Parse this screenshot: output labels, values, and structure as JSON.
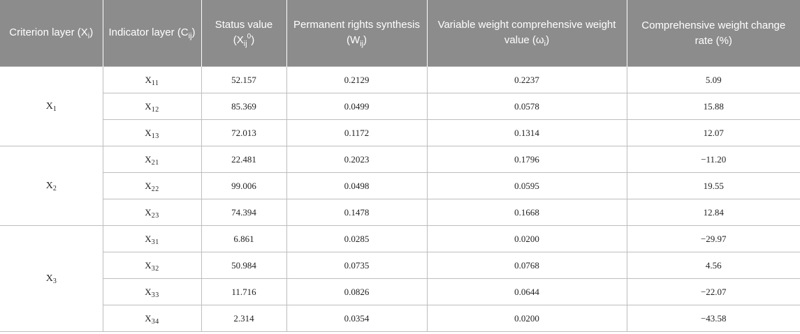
{
  "headers": [
    {
      "pre": "Criterion layer (X",
      "sub": "i",
      "post": ")"
    },
    {
      "pre": "Indicator layer (C",
      "sub": "ij",
      "post": ")"
    },
    {
      "pre": "Status value (X",
      "sub": "ij",
      "sup": "0",
      "post": ")"
    },
    {
      "pre": "Permanent rights synthesis (W",
      "sub": "ij",
      "post": ")"
    },
    {
      "pre": "Variable weight comprehensive weight value (ω",
      "sub": "i",
      "post": ")"
    },
    {
      "pre": "Comprehensive weight change rate (%)"
    }
  ],
  "groups": [
    {
      "name": "X",
      "sub": "1",
      "rows": [
        {
          "ind": "X",
          "ind_sub": "11",
          "status": "52.157",
          "perm": "0.2129",
          "var": "0.2237",
          "rate": "5.09"
        },
        {
          "ind": "X",
          "ind_sub": "12",
          "status": "85.369",
          "perm": "0.0499",
          "var": "0.0578",
          "rate": "15.88"
        },
        {
          "ind": "X",
          "ind_sub": "13",
          "status": "72.013",
          "perm": "0.1172",
          "var": "0.1314",
          "rate": "12.07"
        }
      ]
    },
    {
      "name": "X",
      "sub": "2",
      "rows": [
        {
          "ind": "X",
          "ind_sub": "21",
          "status": "22.481",
          "perm": "0.2023",
          "var": "0.1796",
          "rate": "−11.20"
        },
        {
          "ind": "X",
          "ind_sub": "22",
          "status": "99.006",
          "perm": "0.0498",
          "var": "0.0595",
          "rate": "19.55"
        },
        {
          "ind": "X",
          "ind_sub": "23",
          "status": "74.394",
          "perm": "0.1478",
          "var": "0.1668",
          "rate": "12.84"
        }
      ]
    },
    {
      "name": "X",
      "sub": "3",
      "rows": [
        {
          "ind": "X",
          "ind_sub": "31",
          "status": "6.861",
          "perm": "0.0285",
          "var": "0.0200",
          "rate": "−29.97"
        },
        {
          "ind": "X",
          "ind_sub": "32",
          "status": "50.984",
          "perm": "0.0735",
          "var": "0.0768",
          "rate": "4.56"
        },
        {
          "ind": "X",
          "ind_sub": "33",
          "status": "11.716",
          "perm": "0.0826",
          "var": "0.0644",
          "rate": "−22.07"
        },
        {
          "ind": "X",
          "ind_sub": "34",
          "status": "2.314",
          "perm": "0.0354",
          "var": "0.0200",
          "rate": "−43.58"
        }
      ]
    }
  ]
}
